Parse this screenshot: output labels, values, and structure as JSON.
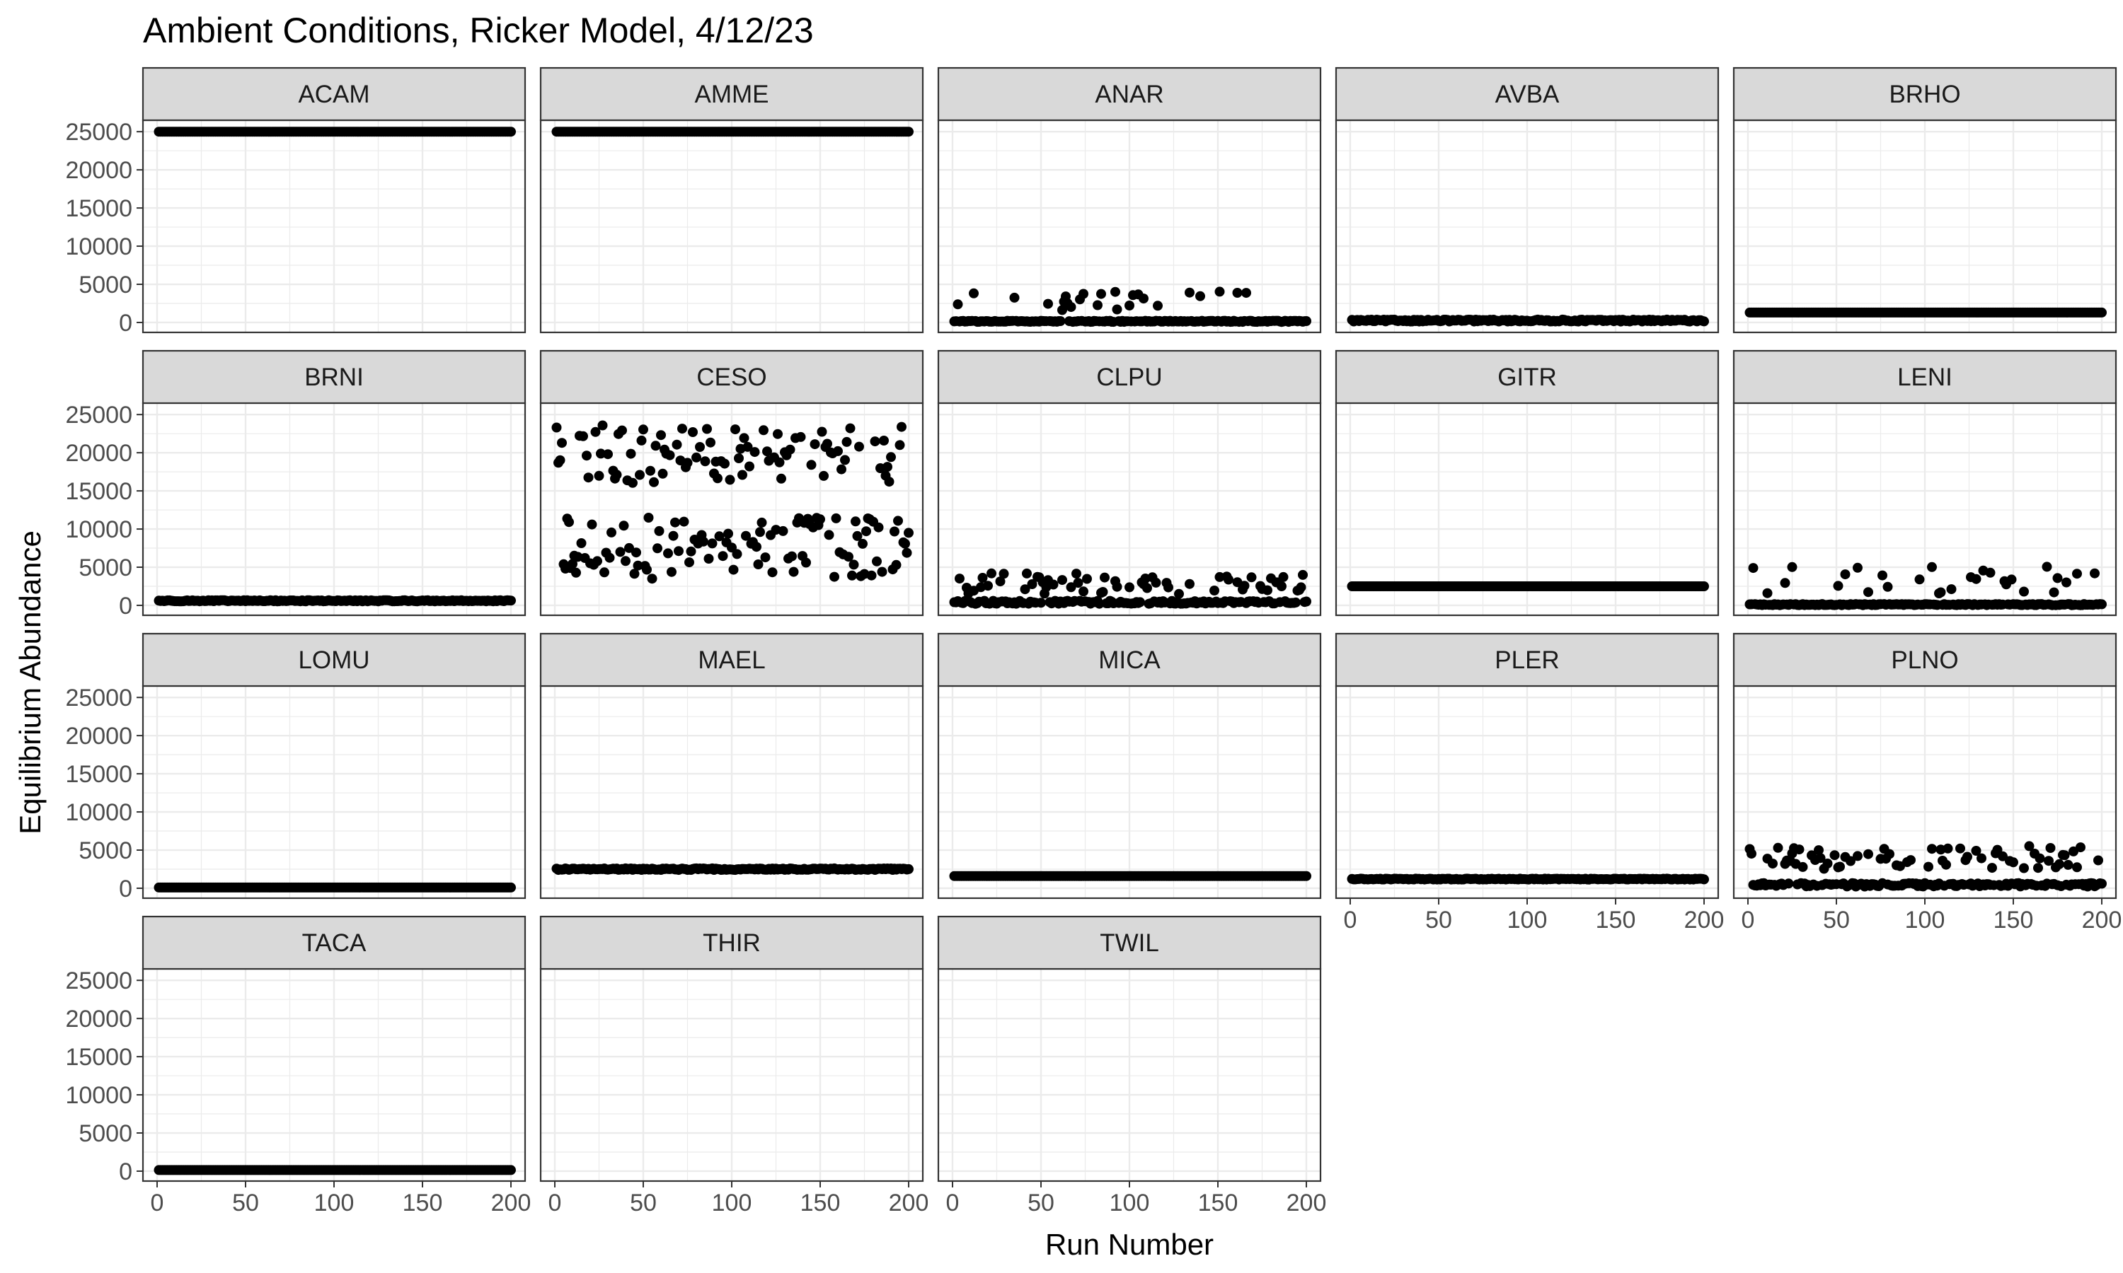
{
  "chart_data": {
    "type": "scatter",
    "title": "Ambient Conditions, Ricker Model, 4/12/23",
    "xlabel": "Run Number",
    "ylabel": "Equilibrium Abundance",
    "xlim": [
      -8,
      208
    ],
    "ylim": [
      -1300,
      26500
    ],
    "x_ticks": [
      "0",
      "50",
      "100",
      "150",
      "200"
    ],
    "y_ticks": [
      "0",
      "5000",
      "10000",
      "15000",
      "20000",
      "25000"
    ],
    "grid": true,
    "point_color": "#000000",
    "panel_border_color": "#333333",
    "strip_fill": "#d9d9d9",
    "gridline_color": "#ebebeb",
    "facet_columns": 5,
    "facets": [
      {
        "name": "ACAM",
        "pattern": "const",
        "value": 25000
      },
      {
        "name": "AMME",
        "pattern": "const",
        "value": 25000
      },
      {
        "name": "ANAR",
        "pattern": "sparse",
        "base": 150,
        "spread": 150,
        "high_lo": 1500,
        "high_hi": 4200,
        "high_rate": 0.13
      },
      {
        "name": "AVBA",
        "pattern": "band",
        "base": 250,
        "spread": 250
      },
      {
        "name": "BRHO",
        "pattern": "const",
        "value": 1300
      },
      {
        "name": "BRNI",
        "pattern": "band",
        "base": 600,
        "spread": 150
      },
      {
        "name": "CESO",
        "pattern": "bimodal",
        "lo_range": [
          3500,
          11500
        ],
        "hi_range": [
          16000,
          24000
        ]
      },
      {
        "name": "CLPU",
        "pattern": "sparse",
        "base": 400,
        "spread": 400,
        "high_lo": 1500,
        "high_hi": 4200,
        "high_rate": 0.35
      },
      {
        "name": "GITR",
        "pattern": "const",
        "value": 2500
      },
      {
        "name": "LENI",
        "pattern": "sparse",
        "base": 100,
        "spread": 150,
        "high_lo": 1500,
        "high_hi": 5200,
        "high_rate": 0.12
      },
      {
        "name": "LOMU",
        "pattern": "const",
        "value": 100
      },
      {
        "name": "MAEL",
        "pattern": "band",
        "base": 2500,
        "spread": 200
      },
      {
        "name": "MICA",
        "pattern": "const",
        "value": 1600
      },
      {
        "name": "PLER",
        "pattern": "band",
        "base": 1200,
        "spread": 120
      },
      {
        "name": "PLNO",
        "pattern": "sparse",
        "base": 450,
        "spread": 450,
        "high_lo": 2500,
        "high_hi": 5600,
        "high_rate": 0.3
      },
      {
        "name": "TACA",
        "pattern": "const",
        "value": 150
      },
      {
        "name": "THIR",
        "pattern": "empty"
      },
      {
        "name": "TWIL",
        "pattern": "empty"
      }
    ]
  }
}
